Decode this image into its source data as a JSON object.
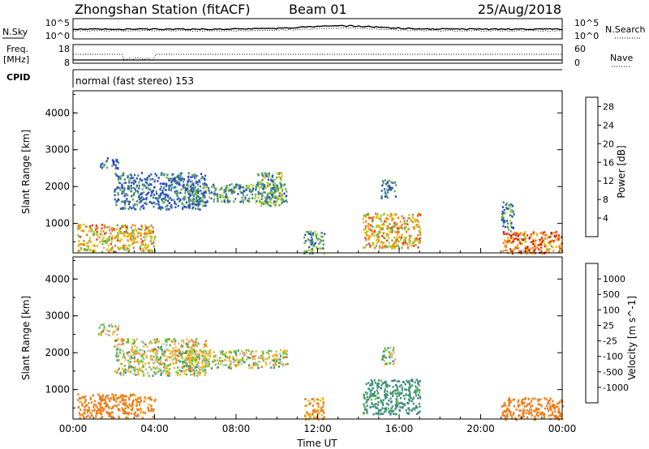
{
  "header": {
    "title": "Zhongshan Station (fitACF)",
    "beam": "Beam 01",
    "date": "25/Aug/2018"
  },
  "strips": {
    "nsky_label": "N.Sky",
    "nsky_ticks": [
      "10^5",
      "10^0"
    ],
    "nsearch_label": "N.Search",
    "nsearch_ticks": [
      "10^5",
      "10^0"
    ],
    "freq_label": "Freq.",
    "freq_unit": "[MHz]",
    "freq_ticks": [
      "18",
      "8"
    ],
    "nave_label": "Nave",
    "nave_ticks": [
      "60",
      "0"
    ],
    "cpid_label": "CPID",
    "cpid_text": "normal (fast stereo) 153"
  },
  "colors": {
    "power": [
      "#2b3fd6",
      "#2a5cb8",
      "#3d8a72",
      "#66a86a",
      "#a8d42a",
      "#f0b400",
      "#f27c18",
      "#ee3a12",
      "#d80000"
    ],
    "velocity": [
      "#2b3fd6",
      "#3564b3",
      "#3f8f7a",
      "#62c432",
      "#bdbdbd",
      "#f6b520",
      "#ee7a16",
      "#e2521d",
      "#d60000"
    ]
  },
  "chart_data": [
    {
      "type": "heatmap",
      "name": "power-panel",
      "ylabel": "Slant Range [km]",
      "yticks": [
        "1000",
        "2000",
        "3000",
        "4000"
      ],
      "ylim": [
        200,
        4600
      ],
      "xlim": [
        0,
        24
      ],
      "colorbar_label": "Power [dB]",
      "colorbar_ticks": [
        "4",
        "8",
        "12",
        "16",
        "20",
        "24",
        "28"
      ],
      "colorbar_range": [
        0,
        30
      ],
      "regions": [
        {
          "t0": 0.2,
          "t1": 4.0,
          "r0": 250,
          "r1": 1000,
          "value": 18
        },
        {
          "t0": 1.3,
          "t1": 2.2,
          "r0": 2500,
          "r1": 2800,
          "value": 6
        },
        {
          "t0": 2.0,
          "t1": 6.5,
          "r0": 1400,
          "r1": 2400,
          "value": 6
        },
        {
          "t0": 5.5,
          "t1": 10.5,
          "r0": 1600,
          "r1": 2100,
          "value": 9
        },
        {
          "t0": 9.0,
          "t1": 10.3,
          "r0": 1500,
          "r1": 2400,
          "value": 11
        },
        {
          "t0": 11.3,
          "t1": 12.3,
          "r0": 200,
          "r1": 800,
          "value": 10
        },
        {
          "t0": 14.2,
          "t1": 17.0,
          "r0": 350,
          "r1": 1300,
          "value": 18
        },
        {
          "t0": 15.1,
          "t1": 15.8,
          "r0": 1700,
          "r1": 2200,
          "value": 7
        },
        {
          "t0": 21.0,
          "t1": 24.0,
          "r0": 200,
          "r1": 800,
          "value": 22
        },
        {
          "t0": 21.0,
          "t1": 21.6,
          "r0": 800,
          "r1": 1600,
          "value": 9
        }
      ]
    },
    {
      "type": "heatmap",
      "name": "velocity-panel",
      "ylabel": "Slant Range [km]",
      "yticks": [
        "1000",
        "2000",
        "3000",
        "4000"
      ],
      "ylim": [
        200,
        4600
      ],
      "xlim": [
        0,
        24
      ],
      "xticks": [
        "00:00",
        "04:00",
        "08:00",
        "12:00",
        "16:00",
        "20:00",
        "00:00"
      ],
      "xlabel": "Time UT",
      "colorbar_label": "Velocity [m s^-1]",
      "colorbar_ticks": [
        "1000",
        "500",
        "100",
        "25",
        "-25",
        "-100",
        "-500",
        "-1000"
      ],
      "regions": [
        {
          "t0": 0.2,
          "t1": 4.0,
          "r0": 250,
          "r1": 900,
          "value": -200
        },
        {
          "t0": 1.2,
          "t1": 2.2,
          "r0": 2500,
          "r1": 2800,
          "value": 0
        },
        {
          "t0": 2.0,
          "t1": 6.5,
          "r0": 1400,
          "r1": 2400,
          "value": 0
        },
        {
          "t0": 5.5,
          "t1": 10.5,
          "r0": 1600,
          "r1": 2100,
          "value": 0
        },
        {
          "t0": 11.3,
          "t1": 12.3,
          "r0": 200,
          "r1": 800,
          "value": -150
        },
        {
          "t0": 14.2,
          "t1": 17.0,
          "r0": 350,
          "r1": 1300,
          "value": 200
        },
        {
          "t0": 15.1,
          "t1": 15.8,
          "r0": 1700,
          "r1": 2200,
          "value": 60
        },
        {
          "t0": 21.0,
          "t1": 24.0,
          "r0": 200,
          "r1": 800,
          "value": -300
        }
      ]
    }
  ]
}
